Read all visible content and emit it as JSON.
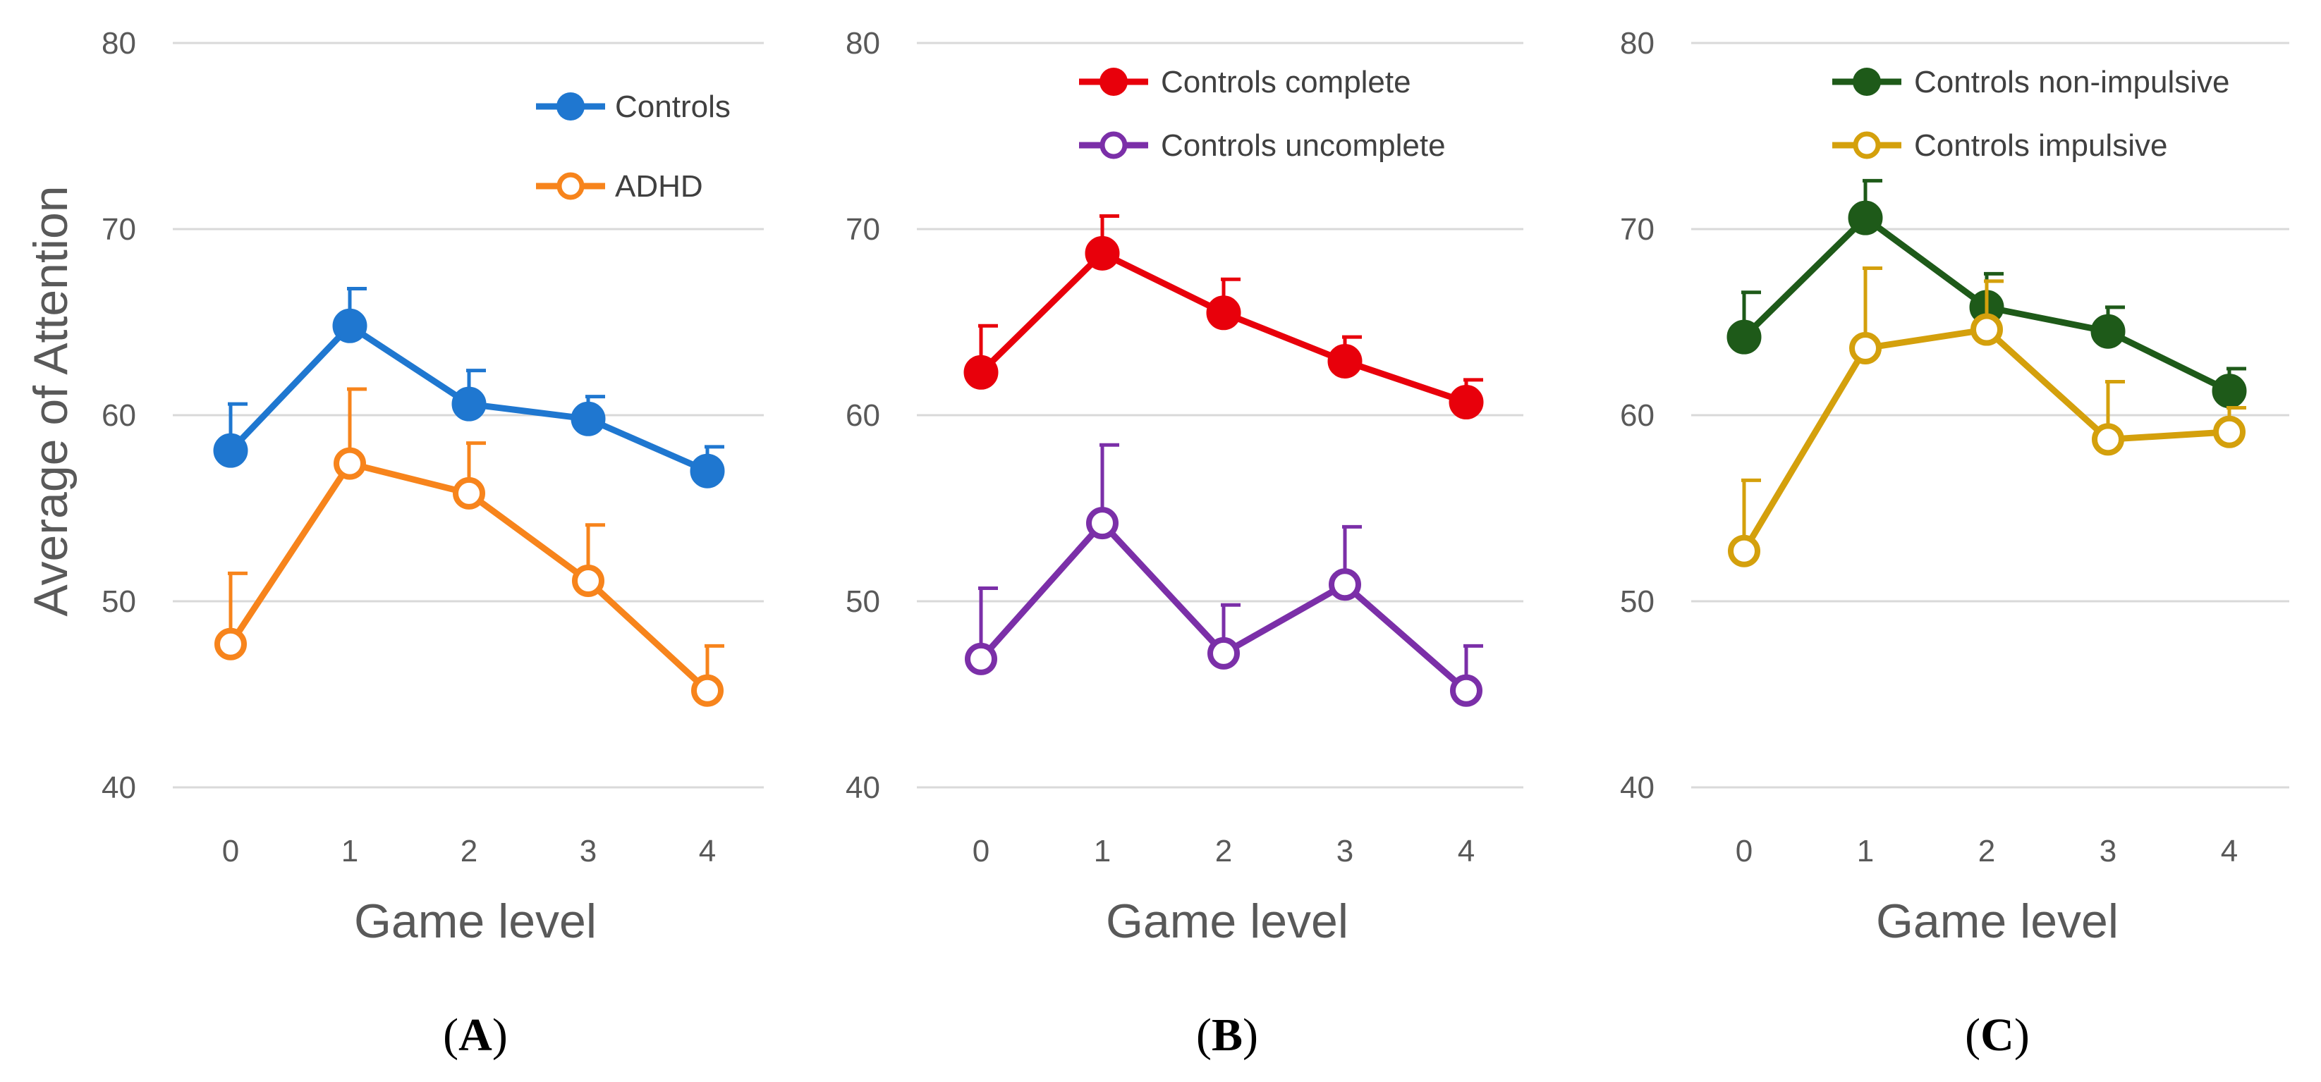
{
  "chart_data": [
    {
      "type": "line",
      "panel_label": "A",
      "panel_label_prefix": "(",
      "panel_label_suffix": ")",
      "xlabel": "Game level",
      "ylabel": "Average of Attention",
      "categories": [
        "0",
        "1",
        "2",
        "3",
        "4"
      ],
      "ylim": [
        40,
        80
      ],
      "yticks": [
        "40",
        "50",
        "60",
        "70",
        "80"
      ],
      "grid": true,
      "legend_position": "top-right",
      "series": [
        {
          "name": "Controls",
          "color": "#1f77d0",
          "marker": "filled",
          "values": [
            58.1,
            64.8,
            60.6,
            59.8,
            57.0
          ],
          "error_upper": [
            2.5,
            2.0,
            1.8,
            1.2,
            1.3
          ]
        },
        {
          "name": "ADHD",
          "color": "#f7841c",
          "marker": "open",
          "values": [
            47.7,
            57.4,
            55.8,
            51.1,
            45.2
          ],
          "error_upper": [
            3.8,
            4.0,
            2.7,
            3.0,
            2.4
          ]
        }
      ]
    },
    {
      "type": "line",
      "panel_label": "B",
      "panel_label_prefix": "(",
      "panel_label_suffix": ")",
      "xlabel": "Game level",
      "ylabel": "",
      "categories": [
        "0",
        "1",
        "2",
        "3",
        "4"
      ],
      "ylim": [
        40,
        80
      ],
      "yticks": [
        "40",
        "50",
        "60",
        "70",
        "80"
      ],
      "grid": true,
      "legend_position": "top-right",
      "series": [
        {
          "name": "Controls complete",
          "color": "#e8000b",
          "marker": "filled",
          "values": [
            62.3,
            68.7,
            65.5,
            62.9,
            60.7
          ],
          "error_upper": [
            2.5,
            2.0,
            1.8,
            1.3,
            1.2
          ]
        },
        {
          "name": "Controls uncomplete",
          "color": "#7b2fa8",
          "marker": "open",
          "values": [
            46.9,
            54.2,
            47.2,
            50.9,
            45.2
          ],
          "error_upper": [
            3.8,
            4.2,
            2.6,
            3.1,
            2.4
          ]
        }
      ]
    },
    {
      "type": "line",
      "panel_label": "C",
      "panel_label_prefix": "(",
      "panel_label_suffix": ")",
      "xlabel": "Game level",
      "ylabel": "",
      "categories": [
        "0",
        "1",
        "2",
        "3",
        "4"
      ],
      "ylim": [
        40,
        80
      ],
      "yticks": [
        "40",
        "50",
        "60",
        "70",
        "80"
      ],
      "grid": true,
      "legend_position": "top-right",
      "series": [
        {
          "name": "Controls non-impulsive",
          "color": "#1e5a19",
          "marker": "filled",
          "values": [
            64.2,
            70.6,
            65.8,
            64.5,
            61.3
          ],
          "error_upper": [
            2.4,
            2.0,
            1.8,
            1.3,
            1.2
          ]
        },
        {
          "name": "Controls impulsive",
          "color": "#d4a00c",
          "marker": "open",
          "values": [
            52.7,
            63.6,
            64.6,
            58.7,
            59.1
          ],
          "error_upper": [
            3.8,
            4.3,
            2.6,
            3.1,
            1.3
          ]
        }
      ]
    }
  ]
}
